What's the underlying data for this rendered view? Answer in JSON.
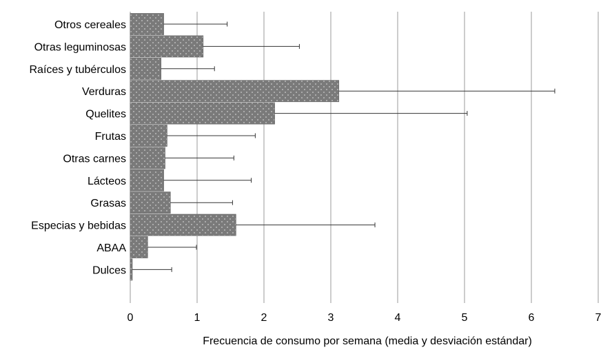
{
  "chart_data": {
    "type": "bar",
    "orientation": "horizontal",
    "title": "",
    "xlabel": "Frecuencia de consumo por semana (media y desviación estándar)",
    "ylabel": "",
    "xlim": [
      0,
      7
    ],
    "xticks": [
      "0",
      "1",
      "2",
      "3",
      "4",
      "5",
      "6",
      "7"
    ],
    "grid": "vertical",
    "legend": "none",
    "bar_color": "#7a7a7a",
    "bar_dot_color": "#cfcfcf",
    "grid_color": "#aaaaaa",
    "error_color": "#333333",
    "categories": [
      "Otros cereales",
      "Otras leguminosas",
      "Raíces y tubérculos",
      "Verduras",
      "Quelites",
      "Frutas",
      "Otras carnes",
      "Lácteos",
      "Grasas",
      "Especias y bebidas",
      "ABAA",
      "Dulces"
    ],
    "values": [
      0.5,
      1.09,
      0.46,
      3.12,
      2.16,
      0.55,
      0.52,
      0.5,
      0.6,
      1.58,
      0.26,
      0.03
    ],
    "error_upper": [
      1.45,
      2.53,
      1.26,
      6.35,
      5.04,
      1.87,
      1.55,
      1.81,
      1.53,
      3.66,
      0.99,
      0.62
    ]
  }
}
